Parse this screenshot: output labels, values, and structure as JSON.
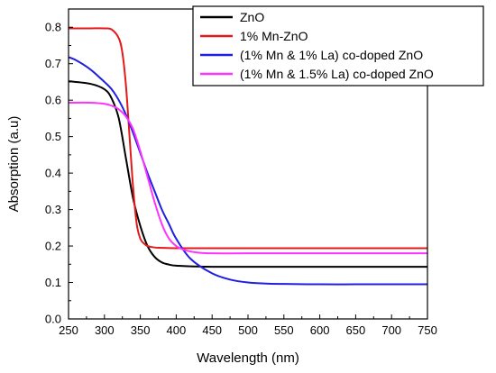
{
  "chart_data": {
    "type": "line",
    "xlabel": "Wavelength (nm)",
    "ylabel": "Absorption (a.u)",
    "xlim": [
      250,
      750
    ],
    "ylim": [
      0.0,
      0.85
    ],
    "x_ticks": [
      "250",
      "300",
      "350",
      "400",
      "450",
      "500",
      "550",
      "600",
      "650",
      "700",
      "750"
    ],
    "y_ticks": [
      "0.0",
      "0.1",
      "0.2",
      "0.3",
      "0.4",
      "0.5",
      "0.6",
      "0.7",
      "0.8"
    ],
    "legend_position": "top-right",
    "grid": false,
    "series": [
      {
        "name": "ZnO",
        "color": "#000000",
        "x": [
          250,
          280,
          300,
          310,
          320,
          330,
          340,
          350,
          360,
          370,
          380,
          390,
          400,
          425,
          450,
          500,
          600,
          750
        ],
        "y": [
          0.652,
          0.645,
          0.63,
          0.605,
          0.55,
          0.44,
          0.33,
          0.255,
          0.2,
          0.17,
          0.155,
          0.149,
          0.146,
          0.144,
          0.143,
          0.143,
          0.143,
          0.143
        ]
      },
      {
        "name": "1% Mn-ZnO",
        "color": "#e31a1c",
        "x": [
          250,
          280,
          300,
          310,
          320,
          325,
          330,
          335,
          340,
          345,
          350,
          355,
          360,
          370,
          380,
          400,
          450,
          500,
          600,
          750
        ],
        "y": [
          0.797,
          0.797,
          0.797,
          0.794,
          0.77,
          0.73,
          0.64,
          0.5,
          0.36,
          0.26,
          0.22,
          0.207,
          0.2,
          0.196,
          0.195,
          0.194,
          0.194,
          0.194,
          0.194,
          0.194
        ]
      },
      {
        "name": "(1% Mn & 1% La) co-doped ZnO",
        "color": "#1f1fe0",
        "x": [
          250,
          260,
          280,
          300,
          310,
          320,
          330,
          340,
          350,
          360,
          370,
          380,
          390,
          400,
          420,
          450,
          475,
          500,
          525,
          550,
          600,
          650,
          700,
          750
        ],
        "y": [
          0.718,
          0.71,
          0.685,
          0.65,
          0.63,
          0.6,
          0.56,
          0.51,
          0.455,
          0.4,
          0.35,
          0.3,
          0.26,
          0.22,
          0.165,
          0.125,
          0.108,
          0.1,
          0.097,
          0.096,
          0.095,
          0.095,
          0.095,
          0.095
        ]
      },
      {
        "name": "(1% Mn & 1.5% La) co-doped ZnO",
        "color": "#ff33ff",
        "x": [
          250,
          280,
          300,
          310,
          320,
          330,
          340,
          350,
          360,
          370,
          380,
          390,
          400,
          410,
          420,
          430,
          450,
          500,
          600,
          750
        ],
        "y": [
          0.593,
          0.593,
          0.59,
          0.585,
          0.575,
          0.555,
          0.52,
          0.46,
          0.39,
          0.32,
          0.26,
          0.22,
          0.2,
          0.19,
          0.185,
          0.182,
          0.18,
          0.18,
          0.18,
          0.18
        ]
      }
    ]
  }
}
